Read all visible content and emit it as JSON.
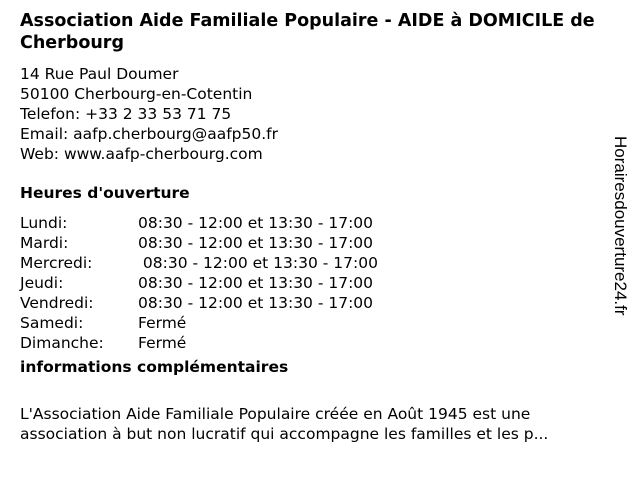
{
  "title": "Association Aide Familiale Populaire - AIDE à DOMICILE de Cherbourg",
  "address": {
    "street": "14 Rue Paul Doumer",
    "city": "50100 Cherbourg-en-Cotentin",
    "phone": "Telefon: +33 2 33 53 71 75",
    "email": "Email: aafp.cherbourg@aafp50.fr",
    "web": "Web: www.aafp-cherbourg.com"
  },
  "hours_heading": "Heures d'ouverture",
  "hours": [
    {
      "day": "Lundi:",
      "time": "08:30 - 12:00 et 13:30 - 17:00"
    },
    {
      "day": "Mardi:",
      "time": "08:30 - 12:00 et 13:30 - 17:00"
    },
    {
      "day": "Mercredi:",
      "time": " 08:30 - 12:00 et 13:30 - 17:00"
    },
    {
      "day": "Jeudi:",
      "time": "08:30 - 12:00 et 13:30 - 17:00"
    },
    {
      "day": "Vendredi:",
      "time": "08:30 - 12:00 et 13:30 - 17:00"
    },
    {
      "day": "Samedi:",
      "time": "Fermé"
    },
    {
      "day": "Dimanche:",
      "time": "Fermé"
    }
  ],
  "info_heading": "informations complémentaires",
  "info_line1": "L'Association Aide Familiale Populaire créée en Août 1945 est une",
  "info_line2": " association à but non lucratif qui accompagne les familles et les p...",
  "watermark": "Horairesdouverture24.fr"
}
